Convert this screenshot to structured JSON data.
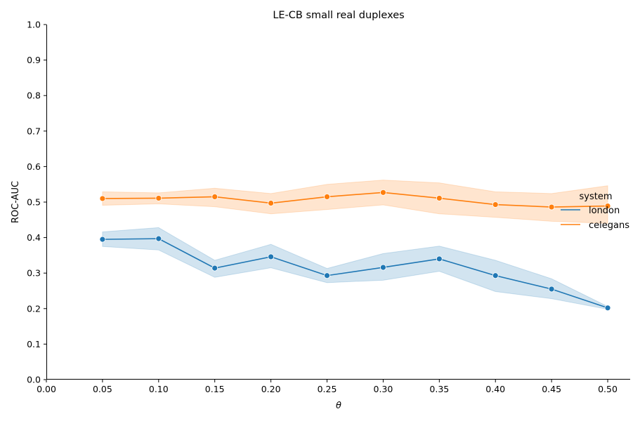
{
  "chart_data": {
    "type": "line",
    "title": "LE-CB small real duplexes",
    "xlabel": "θ",
    "ylabel": "ROC-AUC",
    "xlim": [
      0.0,
      0.52
    ],
    "ylim": [
      0.0,
      1.0
    ],
    "xticks": [
      "0.00",
      "0.05",
      "0.10",
      "0.15",
      "0.20",
      "0.25",
      "0.30",
      "0.35",
      "0.40",
      "0.45",
      "0.50"
    ],
    "yticks": [
      "0.0",
      "0.1",
      "0.2",
      "0.3",
      "0.4",
      "0.5",
      "0.6",
      "0.7",
      "0.8",
      "0.9",
      "1.0"
    ],
    "grid": false,
    "legend": {
      "title": "system",
      "placement": "right"
    },
    "x": [
      0.05,
      0.1,
      0.15,
      0.2,
      0.25,
      0.3,
      0.35,
      0.4,
      0.45,
      0.5
    ],
    "series": [
      {
        "name": "london",
        "color": "#1f77b4",
        "values": [
          0.395,
          0.397,
          0.314,
          0.346,
          0.293,
          0.316,
          0.34,
          0.293,
          0.255,
          0.202
        ],
        "ci_low": [
          0.375,
          0.365,
          0.288,
          0.315,
          0.273,
          0.28,
          0.305,
          0.248,
          0.228,
          0.198
        ],
        "ci_high": [
          0.416,
          0.428,
          0.336,
          0.381,
          0.313,
          0.355,
          0.376,
          0.336,
          0.284,
          0.206
        ]
      },
      {
        "name": "celegans",
        "color": "#ff7f0e",
        "values": [
          0.51,
          0.511,
          0.515,
          0.497,
          0.515,
          0.527,
          0.511,
          0.493,
          0.486,
          0.489
        ],
        "ci_low": [
          0.491,
          0.495,
          0.487,
          0.467,
          0.479,
          0.492,
          0.467,
          0.457,
          0.446,
          0.44
        ],
        "ci_high": [
          0.529,
          0.526,
          0.539,
          0.524,
          0.55,
          0.562,
          0.554,
          0.529,
          0.524,
          0.546
        ]
      }
    ]
  }
}
